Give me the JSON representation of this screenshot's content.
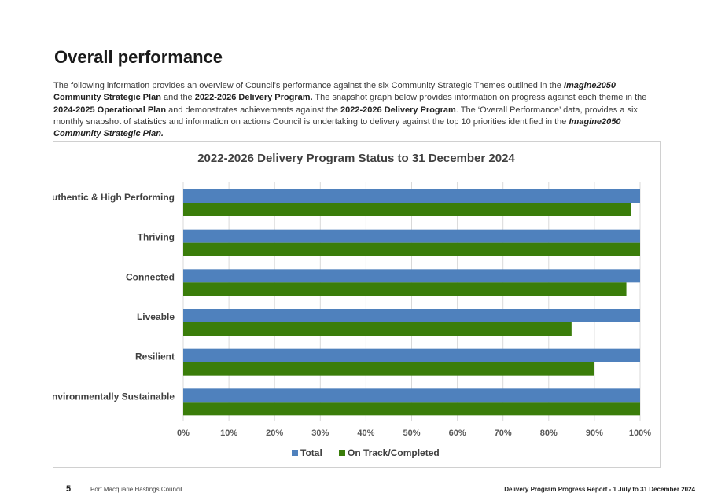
{
  "heading": "Overall performance",
  "intro": {
    "t1": "The following information provides an overview of Council’s performance against the six Community Strategic Themes outlined in the ",
    "b1": "Imagine2050",
    "b2": " Community Strategic Plan",
    "t2": " and the ",
    "b3": "2022-2026 Delivery Program.",
    "t3": " The snapshot graph below provides information on progress against each theme in the ",
    "b4": "2024-2025 Operational Plan",
    "t4": " and demonstrates achievements against the ",
    "b5": "2022-2026 Delivery Program",
    "t5": ". The ‘Overall Performance’ data, provides a six monthly snapshot of statistics and information on actions Council is undertaking to delivery against the top 10 priorities identified in the ",
    "b6": "Imagine2050 Community Strategic Plan."
  },
  "chart_data": {
    "type": "bar",
    "orientation": "horizontal",
    "title": "2022-2026 Delivery Program Status to 31 December 2024",
    "categories": [
      "Authentic & High Performing",
      "Thriving",
      "Connected",
      "Liveable",
      "Resilient",
      "Environmentally Sustainable"
    ],
    "series": [
      {
        "name": "Total",
        "color": "#4F81BD",
        "values": [
          100,
          100,
          100,
          100,
          100,
          100
        ]
      },
      {
        "name": "On Track/Completed",
        "color": "#3A7D0A",
        "values": [
          98,
          100,
          97,
          85,
          90,
          100
        ]
      }
    ],
    "xlim": [
      0,
      100
    ],
    "ticks": [
      "0%",
      "10%",
      "20%",
      "30%",
      "40%",
      "50%",
      "60%",
      "70%",
      "80%",
      "90%",
      "100%"
    ],
    "grid": true,
    "legend": "bottom"
  },
  "footer": {
    "page": "5",
    "org": "Port Macquarie Hastings Council",
    "report": "Delivery Program Progress Report - 1 July to 31 December 2024"
  }
}
